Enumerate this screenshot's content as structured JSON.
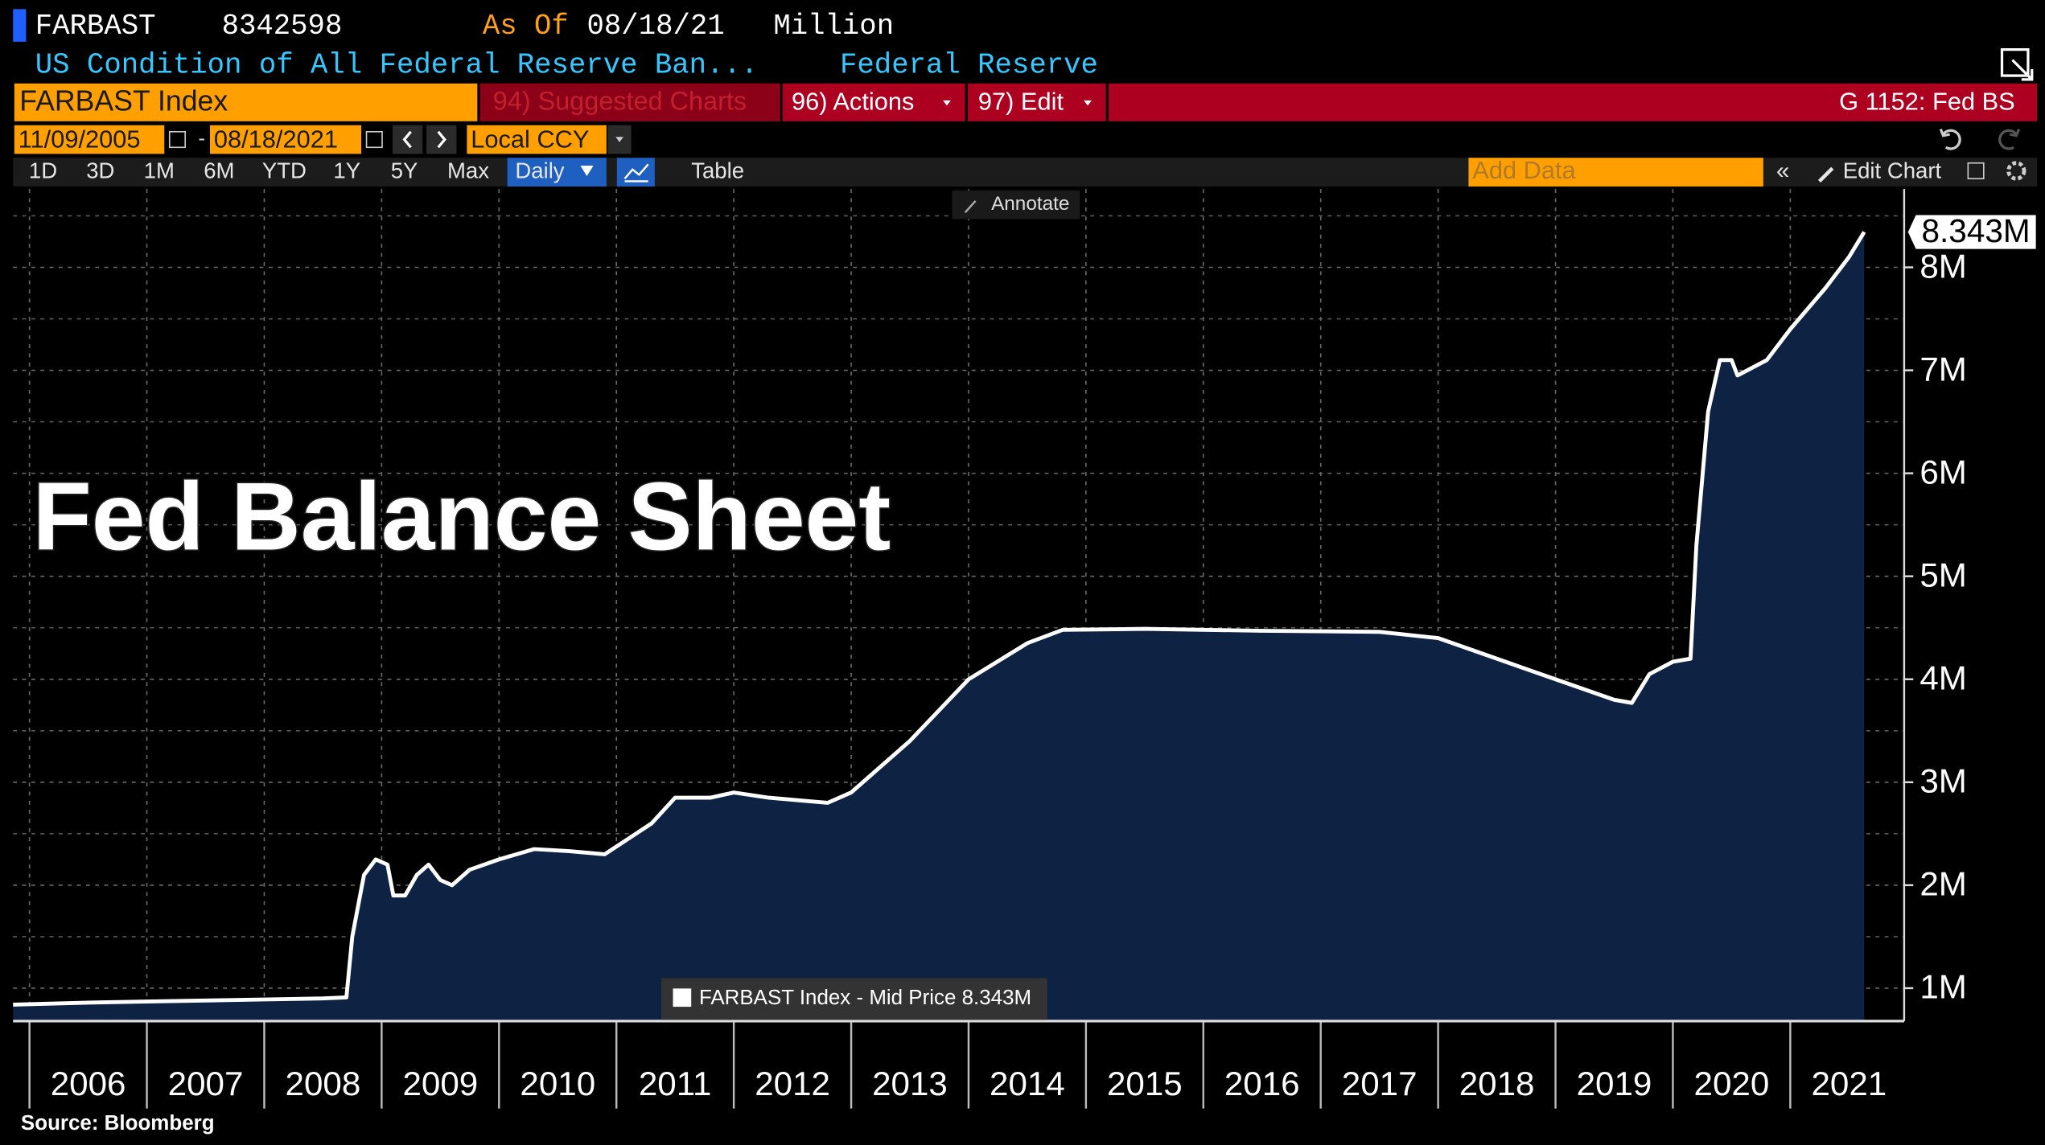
{
  "header": {
    "ticker": "FARBAST",
    "last": "8342598",
    "as_of_label": "As Of",
    "as_of": "08/18/21",
    "units": "Million",
    "description": "US Condition of All Federal Reserve Ban...",
    "source_name": "Federal Reserve"
  },
  "toolbar": {
    "security": "FARBAST Index",
    "suggested": "94) Suggested Charts",
    "actions": "96) Actions",
    "edit": "97) Edit",
    "page": "G 1152: Fed BS",
    "start_date": "11/09/2005",
    "end_date": "08/18/2021",
    "currency": "Local CCY",
    "periods": [
      "1D",
      "3D",
      "1M",
      "6M",
      "YTD",
      "1Y",
      "5Y",
      "Max"
    ],
    "frequency": "Daily",
    "table": "Table",
    "add_data": "Add Data",
    "edit_chart": "Edit Chart",
    "annotate": "Annotate"
  },
  "chart_data": {
    "type": "area",
    "title": "Fed Balance Sheet",
    "source": "Source: Bloomberg",
    "last_label": "8.343M",
    "x": [
      2005.86,
      2006.5,
      2007.0,
      2007.5,
      2008.0,
      2008.5,
      2008.7,
      2008.75,
      2008.85,
      2008.95,
      2009.05,
      2009.1,
      2009.2,
      2009.3,
      2009.4,
      2009.5,
      2009.6,
      2009.75,
      2010.0,
      2010.3,
      2010.6,
      2010.9,
      2011.3,
      2011.5,
      2011.8,
      2012.0,
      2012.3,
      2012.8,
      2013.0,
      2013.5,
      2014.0,
      2014.5,
      2014.8,
      2015.5,
      2016.5,
      2017.5,
      2018.0,
      2018.5,
      2019.0,
      2019.5,
      2019.65,
      2019.8,
      2020.0,
      2020.15,
      2020.2,
      2020.3,
      2020.4,
      2020.5,
      2020.55,
      2020.8,
      2021.0,
      2021.3,
      2021.5,
      2021.63
    ],
    "series": [
      {
        "name": "FARBAST Index - Mid Price 8.343M",
        "color": "#ffffff",
        "fill": "#0e2244",
        "values": [
          0.84,
          0.86,
          0.87,
          0.88,
          0.89,
          0.9,
          0.91,
          1.5,
          2.1,
          2.25,
          2.2,
          1.9,
          1.9,
          2.1,
          2.2,
          2.05,
          2.0,
          2.15,
          2.25,
          2.35,
          2.33,
          2.3,
          2.6,
          2.85,
          2.85,
          2.9,
          2.85,
          2.8,
          2.9,
          3.4,
          4.0,
          4.35,
          4.48,
          4.49,
          4.47,
          4.46,
          4.4,
          4.2,
          4.0,
          3.8,
          3.77,
          4.05,
          4.17,
          4.2,
          5.3,
          6.6,
          7.1,
          7.1,
          6.95,
          7.1,
          7.4,
          7.8,
          8.1,
          8.343
        ]
      }
    ],
    "xlim": [
      2005.86,
      2021.97
    ],
    "xticks": [
      {
        "value": 2006,
        "label": "2006"
      },
      {
        "value": 2007,
        "label": "2007"
      },
      {
        "value": 2008,
        "label": "2008"
      },
      {
        "value": 2009,
        "label": "2009"
      },
      {
        "value": 2010,
        "label": "2010"
      },
      {
        "value": 2011,
        "label": "2011"
      },
      {
        "value": 2012,
        "label": "2012"
      },
      {
        "value": 2013,
        "label": "2013"
      },
      {
        "value": 2014,
        "label": "2014"
      },
      {
        "value": 2015,
        "label": "2015"
      },
      {
        "value": 2016,
        "label": "2016"
      },
      {
        "value": 2017,
        "label": "2017"
      },
      {
        "value": 2018,
        "label": "2018"
      },
      {
        "value": 2019,
        "label": "2019"
      },
      {
        "value": 2020,
        "label": "2020"
      },
      {
        "value": 2021,
        "label": "2021"
      }
    ],
    "ylim": [
      0.68,
      8.76
    ],
    "yticks": [
      {
        "value": 1,
        "label": "1M"
      },
      {
        "value": 2,
        "label": "2M"
      },
      {
        "value": 3,
        "label": "3M"
      },
      {
        "value": 4,
        "label": "4M"
      },
      {
        "value": 5,
        "label": "5M"
      },
      {
        "value": 6,
        "label": "6M"
      },
      {
        "value": 7,
        "label": "7M"
      },
      {
        "value": 8,
        "label": "8M"
      }
    ],
    "minor_yticks": [
      1.5,
      2.5,
      3.5,
      4.5,
      5.5,
      6.5,
      7.5,
      8.5
    ],
    "grid": true
  }
}
